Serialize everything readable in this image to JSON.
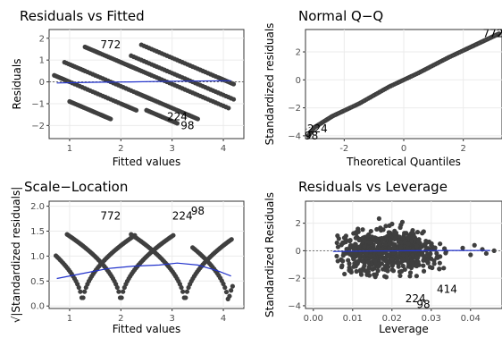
{
  "chart_data": [
    {
      "type": "scatter",
      "title": "Residuals vs Fitted",
      "xlabel": "Fitted values",
      "ylabel": "Residuals",
      "xlim": [
        0.6,
        4.4
      ],
      "ylim": [
        -2.6,
        2.4
      ],
      "xticks": [
        1,
        2,
        3,
        4
      ],
      "yticks": [
        -2,
        -1,
        0,
        1,
        2
      ],
      "reference_line": {
        "y": 0,
        "style": "dotted"
      },
      "smooth": [
        [
          0.75,
          -0.05
        ],
        [
          1.5,
          -0.02
        ],
        [
          2.2,
          0.0
        ],
        [
          3.0,
          0.03
        ],
        [
          4.15,
          0.05
        ]
      ],
      "series": [
        {
          "values": [
            [
              0.7,
              0.3
            ],
            [
              1.0,
              0.0
            ],
            [
              1.5,
              -0.5
            ],
            [
              2.0,
              -1.0
            ],
            [
              2.3,
              -1.3
            ]
          ]
        },
        {
          "values": [
            [
              0.9,
              0.9
            ],
            [
              1.3,
              0.5
            ],
            [
              1.8,
              0.0
            ],
            [
              2.3,
              -0.5
            ],
            [
              2.6,
              -0.8
            ]
          ]
        },
        {
          "values": [
            [
              1.3,
              1.6
            ],
            [
              1.6,
              1.3
            ],
            [
              2.0,
              0.9
            ],
            [
              2.3,
              0.6
            ]
          ]
        },
        {
          "values": [
            [
              1.0,
              -0.9
            ],
            [
              1.3,
              -1.2
            ],
            [
              1.6,
              -1.5
            ],
            [
              1.8,
              -1.7
            ]
          ]
        },
        {
          "values": [
            [
              2.4,
              1.7
            ],
            [
              2.9,
              1.2
            ],
            [
              3.4,
              0.7
            ],
            [
              3.9,
              0.2
            ],
            [
              4.2,
              -0.1
            ]
          ]
        },
        {
          "values": [
            [
              2.2,
              0.7
            ],
            [
              2.6,
              0.3
            ],
            [
              3.1,
              -0.2
            ],
            [
              3.6,
              -0.7
            ],
            [
              4.1,
              -1.2
            ]
          ]
        },
        {
          "values": [
            [
              2.2,
              1.2
            ],
            [
              2.7,
              0.7
            ],
            [
              3.2,
              0.2
            ],
            [
              3.7,
              -0.3
            ],
            [
              4.2,
              -0.8
            ]
          ]
        },
        {
          "values": [
            [
              2.4,
              -0.6
            ],
            [
              2.8,
              -1.0
            ],
            [
              3.2,
              -1.4
            ],
            [
              3.5,
              -1.7
            ]
          ]
        },
        {
          "values": [
            [
              2.5,
              -1.3
            ],
            [
              2.8,
              -1.6
            ],
            [
              3.1,
              -1.9
            ]
          ]
        }
      ],
      "labels": [
        {
          "text": "772",
          "x": 1.8,
          "y": 1.7
        },
        {
          "text": "224",
          "x": 3.1,
          "y": -1.6
        },
        {
          "text": "98",
          "x": 3.3,
          "y": -2.0
        }
      ]
    },
    {
      "type": "scatter",
      "title": "Normal Q−Q",
      "xlabel": "Theoretical Quantiles",
      "ylabel": "Standardized residuals",
      "xlim": [
        -3.3,
        3.3
      ],
      "ylim": [
        -4.2,
        3.6
      ],
      "xticks": [
        -2,
        0,
        2
      ],
      "yticks": [
        -4,
        -2,
        0,
        2
      ],
      "reference_line": {
        "from": [
          -3.3,
          -3.55
        ],
        "to": [
          3.3,
          3.45
        ],
        "style": "dotted"
      },
      "curve": [
        [
          -3.2,
          -4.0
        ],
        [
          -3.0,
          -3.4
        ],
        [
          -2.7,
          -3.0
        ],
        [
          -2.4,
          -2.6
        ],
        [
          -2.0,
          -2.2
        ],
        [
          -1.5,
          -1.7
        ],
        [
          -1.0,
          -1.1
        ],
        [
          -0.5,
          -0.5
        ],
        [
          0.0,
          0.0
        ],
        [
          0.5,
          0.5
        ],
        [
          1.0,
          1.05
        ],
        [
          1.5,
          1.6
        ],
        [
          2.0,
          2.1
        ],
        [
          2.4,
          2.5
        ],
        [
          2.7,
          2.8
        ],
        [
          3.0,
          3.1
        ],
        [
          3.2,
          3.3
        ]
      ],
      "labels": [
        {
          "text": "772",
          "x": 3.0,
          "y": 3.3
        },
        {
          "text": "224",
          "x": -2.9,
          "y": -3.5
        },
        {
          "text": "98",
          "x": -3.1,
          "y": -4.0
        }
      ]
    },
    {
      "type": "scatter",
      "title": "Scale−Location",
      "xlabel": "Fitted values",
      "ylabel": "√|Standardized residuals|",
      "xlim": [
        0.6,
        4.4
      ],
      "ylim": [
        -0.05,
        2.1
      ],
      "xticks": [
        1,
        2,
        3,
        4
      ],
      "yticks": [
        0.0,
        0.5,
        1.0,
        1.5,
        2.0
      ],
      "smooth": [
        [
          0.75,
          0.55
        ],
        [
          1.25,
          0.65
        ],
        [
          1.75,
          0.75
        ],
        [
          2.25,
          0.8
        ],
        [
          2.75,
          0.82
        ],
        [
          3.1,
          0.86
        ],
        [
          3.5,
          0.82
        ],
        [
          3.9,
          0.7
        ],
        [
          4.15,
          0.6
        ]
      ],
      "labels": [
        {
          "text": "772",
          "x": 1.8,
          "y": 1.8
        },
        {
          "text": "224",
          "x": 3.2,
          "y": 1.8
        },
        {
          "text": "98",
          "x": 3.5,
          "y": 1.9
        }
      ]
    },
    {
      "type": "scatter",
      "title": "Residuals vs Leverage",
      "xlabel": "Leverage",
      "ylabel": "Standardized Residuals",
      "xlim": [
        -0.002,
        0.048
      ],
      "ylim": [
        -4.2,
        3.6
      ],
      "xticks": [
        0.0,
        0.01,
        0.02,
        0.03,
        0.04
      ],
      "xtick_labels": [
        "0.00",
        "0.01",
        "0.02",
        "0.03",
        "0.04"
      ],
      "yticks": [
        -4,
        -2,
        0,
        2
      ],
      "reference_line": {
        "y": 0,
        "style": "dotted"
      },
      "smooth": [
        [
          0.005,
          -0.05
        ],
        [
          0.015,
          -0.02
        ],
        [
          0.025,
          0.0
        ],
        [
          0.035,
          0.02
        ],
        [
          0.045,
          0.02
        ]
      ],
      "labels": [
        {
          "text": "414",
          "x": 0.034,
          "y": -2.8
        },
        {
          "text": "224",
          "x": 0.026,
          "y": -3.5
        },
        {
          "text": "98",
          "x": 0.028,
          "y": -3.9
        }
      ]
    }
  ]
}
